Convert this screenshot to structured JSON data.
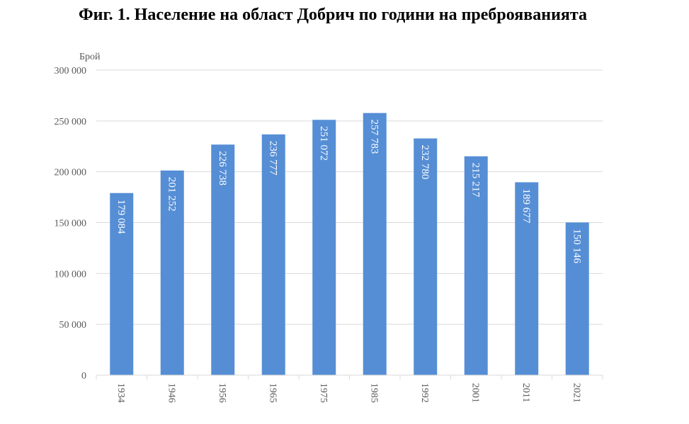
{
  "title": "Фиг. 1. Население на област Добрич по години на преброяванията",
  "chart_data": {
    "type": "bar",
    "title": "Фиг. 1. Население на област Добрич по години на преброяванията",
    "xlabel": "",
    "ylabel": "Брой",
    "categories": [
      "1934",
      "1946",
      "1956",
      "1965",
      "1975",
      "1985",
      "1992",
      "2001",
      "2011",
      "2021"
    ],
    "values": [
      179084,
      201252,
      226738,
      236777,
      251072,
      257783,
      232780,
      215217,
      189677,
      150146
    ],
    "data_labels": [
      "179 084",
      "201 252",
      "226 738",
      "236 777",
      "251 072",
      "257 783",
      "232 780",
      "215 217",
      "189 677",
      "150 146"
    ],
    "ylim": [
      0,
      300000
    ],
    "yticks": [
      0,
      50000,
      100000,
      150000,
      200000,
      250000,
      300000
    ],
    "ytick_labels": [
      "0",
      "50 000",
      "100 000",
      "150 000",
      "200 000",
      "250 000",
      "300 000"
    ],
    "grid": true,
    "bar_color": "#558ed5",
    "grid_color": "#d9d9d9"
  }
}
